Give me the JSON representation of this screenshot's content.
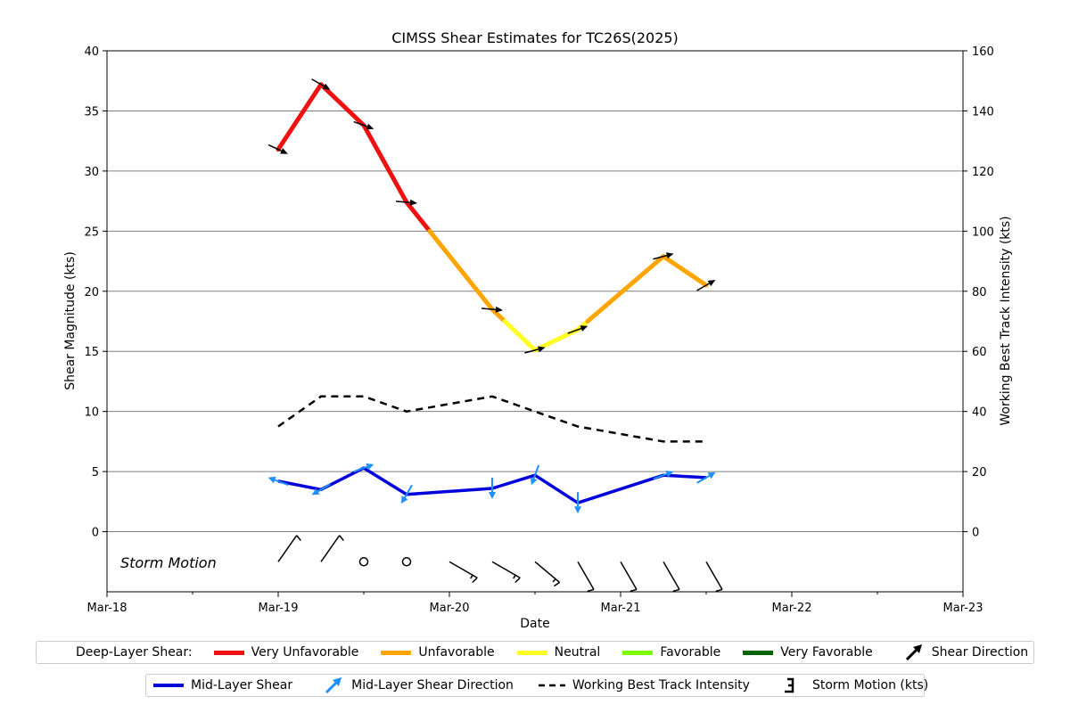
{
  "chart_data": {
    "type": "line",
    "title": "CIMSS Shear Estimates for TC26S(2025)",
    "xlabel": "Date",
    "ylabel": "Shear Magnitude (kts)",
    "ylabel_right": "Working Best Track Intensity (kts)",
    "x_ticks": [
      "Mar-18",
      "Mar-19",
      "Mar-20",
      "Mar-21",
      "Mar-22",
      "Mar-23"
    ],
    "ylim": [
      -5,
      40
    ],
    "y_ticks": [
      0,
      5,
      10,
      15,
      20,
      25,
      30,
      35,
      40
    ],
    "ylim_right": [
      -20,
      160
    ],
    "y_ticks_right": [
      0,
      20,
      40,
      60,
      80,
      100,
      120,
      140,
      160
    ],
    "grid": "horizontal",
    "storm_motion_label": "Storm Motion",
    "deep_layer_shear": {
      "x": [
        1.0,
        1.25,
        1.5,
        1.75,
        2.25,
        2.5,
        2.75,
        3.25,
        3.5
      ],
      "y": [
        31.8,
        37.2,
        33.8,
        27.4,
        18.5,
        15.1,
        16.8,
        22.9,
        20.5
      ],
      "direction_deg": [
        115,
        120,
        110,
        95,
        95,
        75,
        70,
        75,
        60
      ]
    },
    "mid_layer_shear": {
      "x": [
        1.0,
        1.25,
        1.5,
        1.75,
        2.25,
        2.5,
        2.75,
        3.25,
        3.5
      ],
      "y": [
        4.2,
        3.5,
        5.3,
        3.1,
        3.6,
        4.7,
        2.4,
        4.7,
        4.5
      ],
      "direction_deg": [
        290,
        240,
        70,
        210,
        180,
        200,
        180,
        70,
        60
      ]
    },
    "best_track_intensity": {
      "x": [
        1.0,
        1.25,
        1.5,
        1.75,
        2.25,
        2.5,
        2.75,
        3.25,
        3.5
      ],
      "y": [
        35,
        45,
        45,
        40,
        45,
        40,
        35,
        30,
        30
      ]
    },
    "storm_motion": {
      "x": [
        1.0,
        1.25,
        1.5,
        1.75,
        2.0,
        2.25,
        2.5,
        2.75,
        3.0,
        3.25,
        3.5
      ],
      "speed_kts": [
        10,
        10,
        0,
        0,
        15,
        15,
        15,
        10,
        10,
        10,
        10
      ],
      "direction_deg": [
        215,
        215,
        0,
        0,
        300,
        300,
        310,
        330,
        330,
        330,
        330
      ]
    },
    "shear_categories": [
      {
        "name": "Very Unfavorable",
        "color": "#ee1111",
        "min": 25
      },
      {
        "name": "Unfavorable",
        "color": "#ffa500",
        "min": 17.5
      },
      {
        "name": "Neutral",
        "color": "#ffff22",
        "min": 12.5
      },
      {
        "name": "Favorable",
        "color": "#7cfc00",
        "min": 7.5
      },
      {
        "name": "Very Favorable",
        "color": "#006400",
        "min": 0
      }
    ],
    "mid_layer_color": "#0000dd",
    "mid_arrow_color": "#1e90ff",
    "legend1": {
      "title": "Deep-Layer Shear:",
      "items": [
        "Very Unfavorable",
        "Unfavorable",
        "Neutral",
        "Favorable",
        "Very Favorable"
      ],
      "direction_label": "Shear Direction"
    },
    "legend2": {
      "mid_layer": "Mid-Layer Shear",
      "mid_direction": "Mid-Layer Shear Direction",
      "best_track": "Working Best Track Intensity",
      "storm_motion": "Storm Motion (kts)"
    }
  }
}
